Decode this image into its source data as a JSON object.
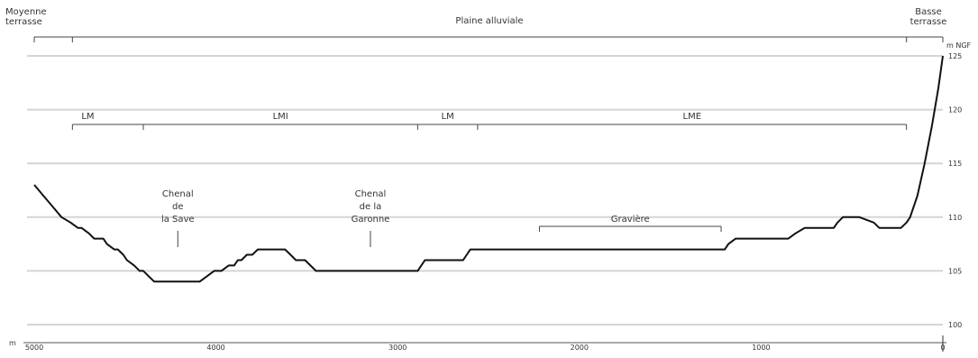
{
  "chart_data": {
    "type": "line",
    "xlim": [
      5000,
      0
    ],
    "ylim": [
      99,
      126
    ],
    "x_unit": "m",
    "y_unit": "m NGF",
    "xticks": [
      5000,
      4000,
      3000,
      2000,
      1000,
      0
    ],
    "yticks": [
      100,
      105,
      110,
      115,
      120,
      125
    ],
    "grid": true,
    "series": [
      {
        "x": [
          5000,
          4950,
          4900,
          4850,
          4800,
          4760,
          4740,
          4700,
          4670,
          4650,
          4620,
          4600,
          4560,
          4540,
          4510,
          4490,
          4450,
          4420,
          4400,
          4370,
          4340,
          4300,
          4260,
          4220,
          4180,
          4130,
          4090,
          4050,
          4010,
          3970,
          3930,
          3900,
          3880,
          3860,
          3830,
          3800,
          3770,
          3740,
          3710,
          3680,
          3650,
          3620,
          3590,
          3560,
          3530,
          3510,
          3480,
          3450,
          3420,
          3400,
          3380,
          3340,
          3310,
          3280,
          3250,
          3220,
          3190,
          3160,
          3130,
          3100,
          3070,
          3040,
          3010,
          2980,
          2950,
          2920,
          2890,
          2870,
          2850,
          2820,
          2790,
          2760,
          2730,
          2700,
          2670,
          2640,
          2620,
          2600,
          2580,
          2540,
          2500,
          2000,
          1500,
          1200,
          1180,
          1140,
          1100,
          1050,
          950,
          850,
          810,
          760,
          720,
          600,
          580,
          550,
          500,
          480,
          460,
          380,
          350,
          320,
          280,
          230,
          200,
          180,
          140,
          100,
          60,
          25,
          0
        ],
        "y": [
          113,
          112,
          111,
          110,
          109.5,
          109,
          109,
          108.5,
          108,
          108,
          108,
          107.5,
          107,
          107,
          106.5,
          106,
          105.5,
          105,
          105,
          104.5,
          104,
          104,
          104,
          104,
          104,
          104,
          104,
          104.5,
          105,
          105,
          105.5,
          105.5,
          106,
          106,
          106.5,
          106.5,
          107,
          107,
          107,
          107,
          107,
          107,
          106.5,
          106,
          106,
          106,
          105.5,
          105,
          105,
          105,
          105,
          105,
          105,
          105,
          105,
          105,
          105,
          105,
          105,
          105,
          105,
          105,
          105,
          105,
          105,
          105,
          105,
          105.5,
          106,
          106,
          106,
          106,
          106,
          106,
          106,
          106,
          106.5,
          107,
          107,
          107,
          107,
          107,
          107,
          107,
          107.5,
          108,
          108,
          108,
          108,
          108,
          108.5,
          109,
          109,
          109,
          109.5,
          110,
          110,
          110,
          110,
          109.5,
          109,
          109,
          109,
          109,
          109.5,
          110,
          112,
          115,
          118.5,
          122,
          125
        ]
      }
    ],
    "top_units": [
      {
        "text": [
          "Moyenne",
          "terrasse"
        ],
        "x_start": 5000,
        "x_end": 4790
      },
      {
        "text": [
          "Plaine alluviale"
        ],
        "x_start": 4790,
        "x_end": 200
      },
      {
        "text": [
          "Basse",
          "terrasse"
        ],
        "x_start": 200,
        "x_end": 0
      }
    ],
    "sub_units": [
      {
        "text": "LM",
        "x_start": 4790,
        "x_end": 4400
      },
      {
        "text": "LMI",
        "x_start": 4400,
        "x_end": 2890
      },
      {
        "text": "LM",
        "x_start": 2890,
        "x_end": 2560
      },
      {
        "text": "LME",
        "x_start": 2560,
        "x_end": 200
      }
    ],
    "annotations": [
      {
        "lines": [
          "Chenal",
          "de",
          "la Save"
        ],
        "x": 4210,
        "y": 111.7
      },
      {
        "lines": [
          "Chenal",
          "de la",
          "Garonne"
        ],
        "x": 3150,
        "y": 111.7
      }
    ],
    "graviere": {
      "text": "Gravière",
      "x_start": 2220,
      "x_end": 1220,
      "y": 109.4
    }
  }
}
